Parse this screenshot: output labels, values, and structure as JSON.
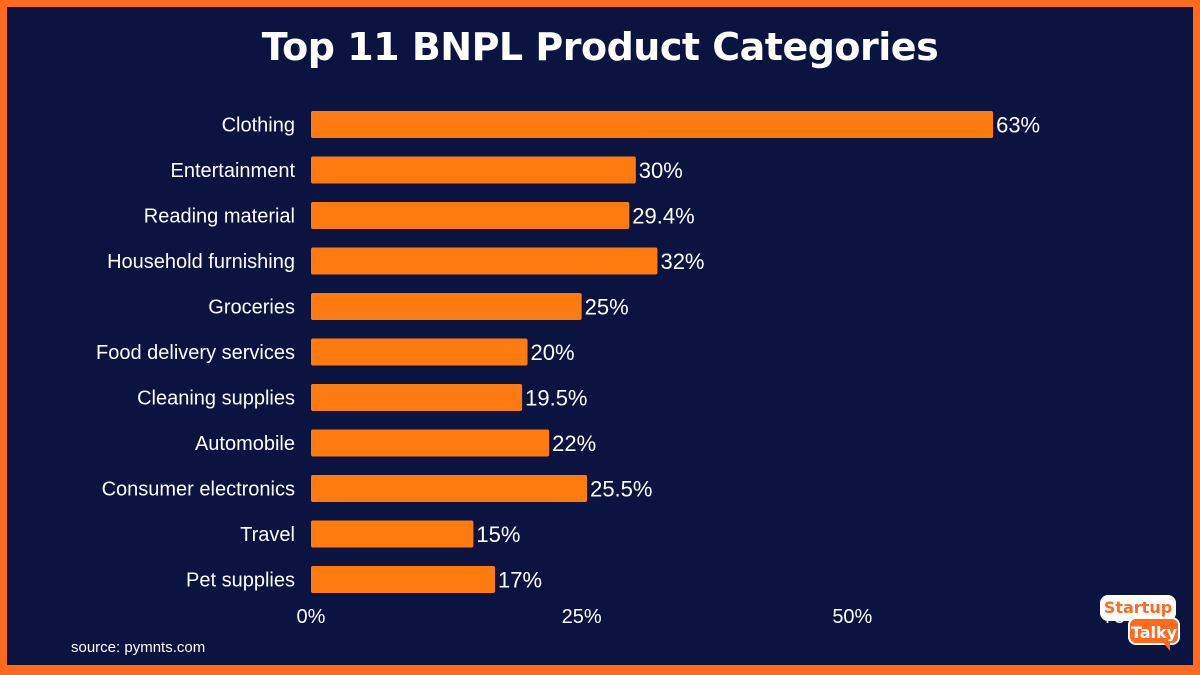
{
  "source_text": "source: pymnts.com",
  "logo": {
    "line1": "Startup",
    "line2": "Talky",
    "name": "startuptalky-logo"
  },
  "colors": {
    "background": "#0b1440",
    "frame": "#ff6a1f",
    "bar": "#ff7a0f",
    "text": "#ffffff"
  },
  "chart_data": {
    "type": "bar",
    "orientation": "horizontal",
    "title": "Top 11 BNPL Product Categories",
    "categories": [
      "Clothing",
      "Entertainment",
      "Reading material",
      "Household furnishing",
      "Groceries",
      "Food delivery services",
      "Cleaning supplies",
      "Automobile",
      "Consumer electronics",
      "Travel",
      "Pet supplies"
    ],
    "values": [
      63,
      30,
      29.4,
      32,
      25,
      20,
      19.5,
      22,
      25.5,
      15,
      17
    ],
    "value_labels": [
      "63%",
      "30%",
      "29.4%",
      "32%",
      "25%",
      "20%",
      "19.5%",
      "22%",
      "25.5%",
      "15%",
      "17%"
    ],
    "xticks": [
      0,
      25,
      50,
      75
    ],
    "xtick_labels": [
      "0%",
      "25%",
      "50%",
      "75%"
    ],
    "xlim": [
      0,
      75
    ],
    "xlabel": "",
    "ylabel": "",
    "grid": false,
    "legend": "none"
  }
}
